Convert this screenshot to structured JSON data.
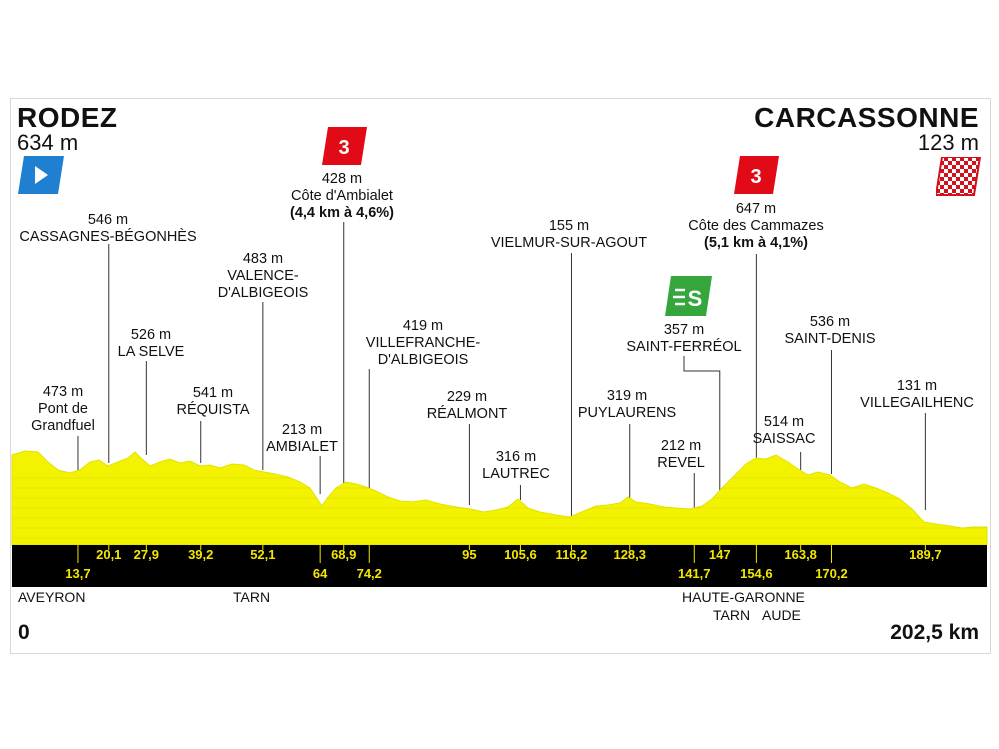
{
  "start": {
    "name": "RODEZ",
    "altitude": "634 m"
  },
  "finish": {
    "name": "CARCASSONNE",
    "altitude": "123 m"
  },
  "distance": {
    "start": "0",
    "end": "202,5 km"
  },
  "colors": {
    "profile": "#f3f300",
    "bar": "#000000",
    "km_text": "#f3e600",
    "climb_badge": "#e20a16",
    "sprint_badge": "#35a63c",
    "start_flag": "#1f7fd1",
    "finish_flag": "#d3101b"
  },
  "icons": {
    "start": "start-flag-icon",
    "finish": "finish-flag-icon",
    "climb": "climb-category-icon",
    "sprint": "sprint-icon"
  },
  "climbs": [
    {
      "category": "3",
      "altitude": "428 m",
      "name": "Côte d'Ambialet",
      "detail": "(4,4 km à 4,6%)"
    },
    {
      "category": "3",
      "altitude": "647 m",
      "name": "Côte des Cammazes",
      "detail": "(5,1 km à 4,1%)"
    }
  ],
  "sprint": {
    "symbol": "S",
    "altitude": "357 m",
    "name": "SAINT-FERRÉOL"
  },
  "points": [
    {
      "alt": "473 m",
      "name": "Pont de\nGrandfuel",
      "km": "13,7"
    },
    {
      "alt": "546 m",
      "name": "CASSAGNES-BÉGONHÈS",
      "km": "20,1"
    },
    {
      "alt": "526 m",
      "name": "LA SELVE",
      "km": "27,9"
    },
    {
      "alt": "541 m",
      "name": "RÉQUISTA",
      "km": "39,2"
    },
    {
      "alt": "483 m",
      "name": "VALENCE-\nD'ALBIGEOIS",
      "km": "52,1"
    },
    {
      "alt": "213 m",
      "name": "AMBIALET",
      "km": "64"
    },
    {
      "alt": "",
      "name": "",
      "km": "68,9"
    },
    {
      "alt": "419 m",
      "name": "VILLEFRANCHE-\nD'ALBIGEOIS",
      "km": "74,2"
    },
    {
      "alt": "229 m",
      "name": "RÉALMONT",
      "km": "95"
    },
    {
      "alt": "316 m",
      "name": "LAUTREC",
      "km": "105,6"
    },
    {
      "alt": "155 m",
      "name": "VIELMUR-SUR-AGOUT",
      "km": "116,2"
    },
    {
      "alt": "319 m",
      "name": "PUYLAURENS",
      "km": "128,3"
    },
    {
      "alt": "212 m",
      "name": "REVEL",
      "km": "141,7"
    },
    {
      "alt": "",
      "name": "",
      "km": "147"
    },
    {
      "alt": "",
      "name": "",
      "km": "154,6"
    },
    {
      "alt": "514 m",
      "name": "SAISSAC",
      "km": "163,8"
    },
    {
      "alt": "536 m",
      "name": "SAINT-DENIS",
      "km": "170,2"
    },
    {
      "alt": "131 m",
      "name": "VILLEGAILHENC",
      "km": "189,7"
    }
  ],
  "departments": {
    "aveyron": "AVEYRON",
    "tarn": "TARN",
    "haute_garonne": "HAUTE-GARONNE",
    "tarn2": "TARN",
    "aude": "AUDE"
  }
}
